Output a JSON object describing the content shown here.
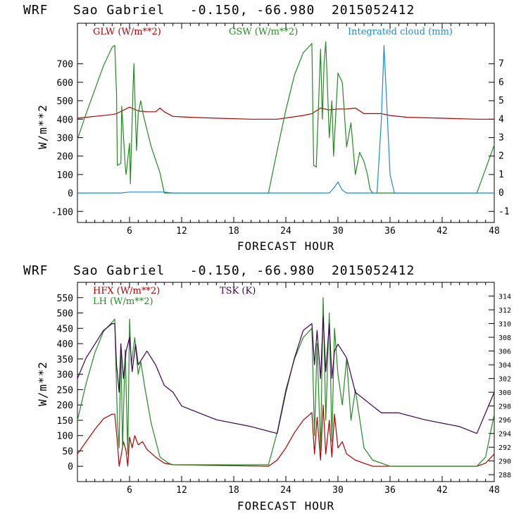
{
  "colors": {
    "red": "#b00000",
    "green": "#228b22",
    "blue": "#1e8bd8",
    "purple": "#3c0050",
    "axis": "#000000"
  },
  "chart_data": [
    {
      "type": "line",
      "title": "WRF   Sao Gabriel   -0.150, -66.980  2015052412",
      "xlabel": "FORECAST HOUR",
      "ylabel": "W/m**2",
      "xlim": [
        0,
        48
      ],
      "ylim": [
        -160,
        920
      ],
      "y2lim": [
        -1.6,
        9.2
      ],
      "xticks": [
        "6",
        "12",
        "18",
        "24",
        "30",
        "36",
        "42",
        "48"
      ],
      "xtick_values": [
        6,
        12,
        18,
        24,
        30,
        36,
        42,
        48
      ],
      "yticks": [
        "-100",
        "0",
        "100",
        "200",
        "300",
        "400",
        "500",
        "600",
        "700"
      ],
      "ytick_values": [
        -100,
        0,
        100,
        200,
        300,
        400,
        500,
        600,
        700
      ],
      "y2ticks": [
        "-1",
        "0",
        "1",
        "2",
        "3",
        "4",
        "5",
        "6",
        "7"
      ],
      "y2tick_values": [
        -1,
        0,
        1,
        2,
        3,
        4,
        5,
        6,
        7
      ],
      "series": [
        {
          "name": "GLW (W/m**2)",
          "color": "#b00000",
          "axis": "left",
          "x": [
            0,
            2,
            4,
            4.5,
            6,
            7,
            8,
            9,
            9.5,
            10,
            11,
            13,
            16,
            20,
            23,
            26,
            27,
            28,
            29,
            30,
            31,
            32,
            33,
            35,
            36,
            38,
            42,
            46,
            48
          ],
          "y": [
            405,
            415,
            425,
            430,
            465,
            445,
            440,
            440,
            460,
            440,
            415,
            410,
            405,
            400,
            400,
            420,
            430,
            460,
            450,
            455,
            455,
            460,
            430,
            430,
            420,
            410,
            405,
            400,
            400
          ]
        },
        {
          "name": "GSW (W/m**2)",
          "color": "#228b22",
          "axis": "left",
          "x": [
            0,
            1,
            2,
            3,
            4,
            4.3,
            4.5,
            4.6,
            5,
            5.1,
            5.5,
            5.6,
            6,
            6.1,
            6.4,
            6.5,
            6.8,
            7,
            7.3,
            7.6,
            8.5,
            9.5,
            10,
            22,
            23,
            24,
            25,
            26,
            27,
            27.2,
            27.5,
            28,
            28.2,
            28.4,
            28.6,
            29,
            29.3,
            29.5,
            30,
            30.5,
            31,
            31.5,
            32,
            32.5,
            33,
            33.4,
            33.7,
            34,
            35,
            46,
            47,
            48
          ],
          "y": [
            290,
            430,
            560,
            690,
            790,
            800,
            540,
            150,
            160,
            470,
            150,
            100,
            270,
            50,
            560,
            700,
            230,
            430,
            500,
            420,
            250,
            110,
            0,
            0,
            230,
            450,
            640,
            760,
            810,
            150,
            140,
            780,
            400,
            700,
            820,
            300,
            500,
            200,
            650,
            600,
            250,
            380,
            100,
            220,
            170,
            100,
            20,
            0,
            0,
            0,
            130,
            260
          ]
        },
        {
          "name": "Integrated cloud (mm)",
          "color": "#1e8bd8",
          "axis": "right",
          "x": [
            0,
            5,
            6,
            10,
            11,
            29,
            29.5,
            30,
            30.5,
            31,
            34.5,
            35,
            35.3,
            35.6,
            36,
            36.5,
            48
          ],
          "y": [
            0,
            0,
            0.05,
            0.05,
            0,
            0,
            0.25,
            0.6,
            0.15,
            0,
            0,
            4,
            8,
            5,
            1,
            0,
            0
          ]
        }
      ]
    },
    {
      "type": "line",
      "title": "WRF   Sao Gabriel   -0.150, -66.980  2015052412",
      "xlabel": "FORECAST HOUR",
      "ylabel": "W/m**2",
      "xlim": [
        0,
        48
      ],
      "ylim": [
        -50,
        600
      ],
      "y2lim": [
        287,
        316
      ],
      "xticks": [
        "6",
        "12",
        "18",
        "24",
        "30",
        "36",
        "42",
        "48"
      ],
      "xtick_values": [
        6,
        12,
        18,
        24,
        30,
        36,
        42,
        48
      ],
      "yticks": [
        "0",
        "50",
        "100",
        "150",
        "200",
        "250",
        "300",
        "350",
        "400",
        "450",
        "500",
        "550"
      ],
      "ytick_values": [
        0,
        50,
        100,
        150,
        200,
        250,
        300,
        350,
        400,
        450,
        500,
        550
      ],
      "y2ticks": [
        "288",
        "290",
        "292",
        "294",
        "296",
        "298",
        "300",
        "302",
        "304",
        "306",
        "308",
        "310",
        "312",
        "314"
      ],
      "y2tick_values": [
        288,
        290,
        292,
        294,
        296,
        298,
        300,
        302,
        304,
        306,
        308,
        310,
        312,
        314
      ],
      "series": [
        {
          "name": "HFX (W/m**2)",
          "color": "#b00000",
          "axis": "left",
          "x": [
            0,
            1,
            2,
            3,
            4,
            4.3,
            4.6,
            4.8,
            5,
            5.3,
            5.6,
            5.8,
            6,
            6.3,
            6.6,
            7,
            7.5,
            8,
            9,
            10,
            11,
            22,
            23,
            24,
            25,
            26,
            27,
            27.3,
            27.6,
            28,
            28.3,
            28.6,
            29,
            29.3,
            29.6,
            30,
            30.5,
            31,
            32,
            33,
            34,
            46,
            47,
            48
          ],
          "y": [
            40,
            80,
            120,
            155,
            170,
            170,
            80,
            0,
            30,
            80,
            50,
            0,
            95,
            60,
            100,
            70,
            80,
            55,
            30,
            10,
            5,
            0,
            20,
            60,
            110,
            150,
            175,
            40,
            160,
            20,
            200,
            40,
            150,
            30,
            170,
            60,
            80,
            40,
            20,
            10,
            0,
            0,
            10,
            40
          ]
        },
        {
          "name": "LH (W/m**2)",
          "color": "#228b22",
          "axis": "left",
          "x": [
            0,
            1,
            2,
            3,
            4,
            4.3,
            4.6,
            4.8,
            5,
            5.2,
            5.5,
            5.8,
            6,
            6.2,
            6.6,
            7,
            7.3,
            7.8,
            8.5,
            9.5,
            10.5,
            11,
            12,
            22,
            23,
            24,
            25,
            26,
            27,
            27.3,
            27.6,
            28,
            28.3,
            28.6,
            29,
            29.3,
            29.6,
            30,
            30.5,
            31,
            31.5,
            32,
            33,
            34,
            36,
            46,
            47,
            48
          ],
          "y": [
            150,
            270,
            370,
            440,
            470,
            480,
            150,
            60,
            400,
            60,
            380,
            40,
            480,
            330,
            420,
            300,
            340,
            250,
            140,
            30,
            10,
            5,
            5,
            5,
            110,
            250,
            350,
            420,
            450,
            100,
            400,
            50,
            550,
            150,
            500,
            80,
            450,
            300,
            200,
            350,
            150,
            250,
            60,
            20,
            0,
            0,
            30,
            170
          ]
        },
        {
          "name": "TSK (K)",
          "color": "#3c0050",
          "axis": "right",
          "x": [
            0,
            1,
            2,
            3,
            4,
            4.3,
            4.5,
            4.8,
            5,
            5.3,
            5.6,
            6,
            6.3,
            6.7,
            7,
            8,
            9,
            10,
            11,
            12,
            16,
            20,
            23,
            24,
            25,
            26,
            27,
            27.3,
            27.6,
            28,
            28.3,
            28.6,
            29,
            29.3,
            29.6,
            30,
            31,
            32,
            33,
            34,
            35,
            37,
            40,
            44,
            46,
            47,
            48
          ],
          "y": [
            302,
            305,
            307,
            309,
            310,
            310,
            304,
            300,
            307,
            302,
            306,
            308,
            303,
            307,
            304,
            306,
            304,
            301,
            300,
            298,
            296,
            295,
            294,
            300,
            305,
            309,
            310,
            304,
            309,
            302,
            311,
            303,
            310,
            302,
            306,
            307,
            305,
            300,
            299,
            298,
            297,
            297,
            296,
            295,
            294,
            297,
            300
          ]
        }
      ]
    }
  ]
}
